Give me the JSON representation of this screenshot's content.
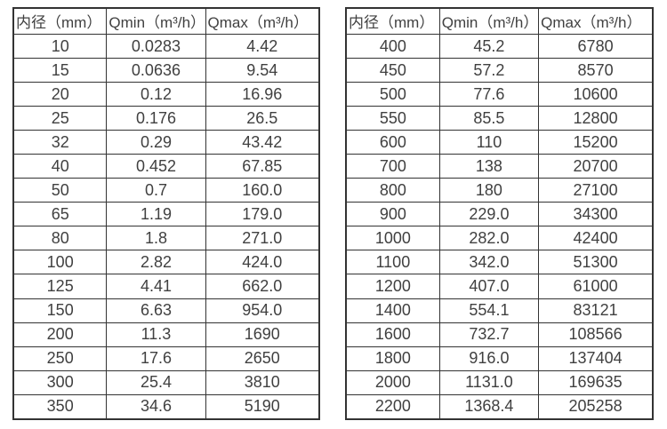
{
  "colors": {
    "background": "#ffffff",
    "border": "#333333",
    "text": "#404040"
  },
  "tables": [
    {
      "name": "flow-rates-small-diameters",
      "headers": [
        "内径（mm）",
        "Qmin（m³/h）",
        "Qmax（m³/h）"
      ],
      "rows": [
        [
          "10",
          "0.0283",
          "4.42"
        ],
        [
          "15",
          "0.0636",
          "9.54"
        ],
        [
          "20",
          "0.12",
          "16.96"
        ],
        [
          "25",
          "0.176",
          "26.5"
        ],
        [
          "32",
          "0.29",
          "43.42"
        ],
        [
          "40",
          "0.452",
          "67.85"
        ],
        [
          "50",
          "0.7",
          "160.0"
        ],
        [
          "65",
          "1.19",
          "179.0"
        ],
        [
          "80",
          "1.8",
          "271.0"
        ],
        [
          "100",
          "2.82",
          "424.0"
        ],
        [
          "125",
          "4.41",
          "662.0"
        ],
        [
          "150",
          "6.63",
          "954.0"
        ],
        [
          "200",
          "11.3",
          "1690"
        ],
        [
          "250",
          "17.6",
          "2650"
        ],
        [
          "300",
          "25.4",
          "3810"
        ],
        [
          "350",
          "34.6",
          "5190"
        ]
      ]
    },
    {
      "name": "flow-rates-large-diameters",
      "headers": [
        "内径（mm）",
        "Qmin（m³/h）",
        "Qmax（m³/h）"
      ],
      "rows": [
        [
          "400",
          "45.2",
          "6780"
        ],
        [
          "450",
          "57.2",
          "8570"
        ],
        [
          "500",
          "77.6",
          "10600"
        ],
        [
          "550",
          "85.5",
          "12800"
        ],
        [
          "600",
          "110",
          "15200"
        ],
        [
          "700",
          "138",
          "20700"
        ],
        [
          "800",
          "180",
          "27100"
        ],
        [
          "900",
          "229.0",
          "34300"
        ],
        [
          "1000",
          "282.0",
          "42400"
        ],
        [
          "1100",
          "342.0",
          "51300"
        ],
        [
          "1200",
          "407.0",
          "61000"
        ],
        [
          "1400",
          "554.1",
          "83121"
        ],
        [
          "1600",
          "732.7",
          "108566"
        ],
        [
          "1800",
          "916.0",
          "137404"
        ],
        [
          "2000",
          "1131.0",
          "169635"
        ],
        [
          "2200",
          "1368.4",
          "205258"
        ]
      ]
    }
  ]
}
